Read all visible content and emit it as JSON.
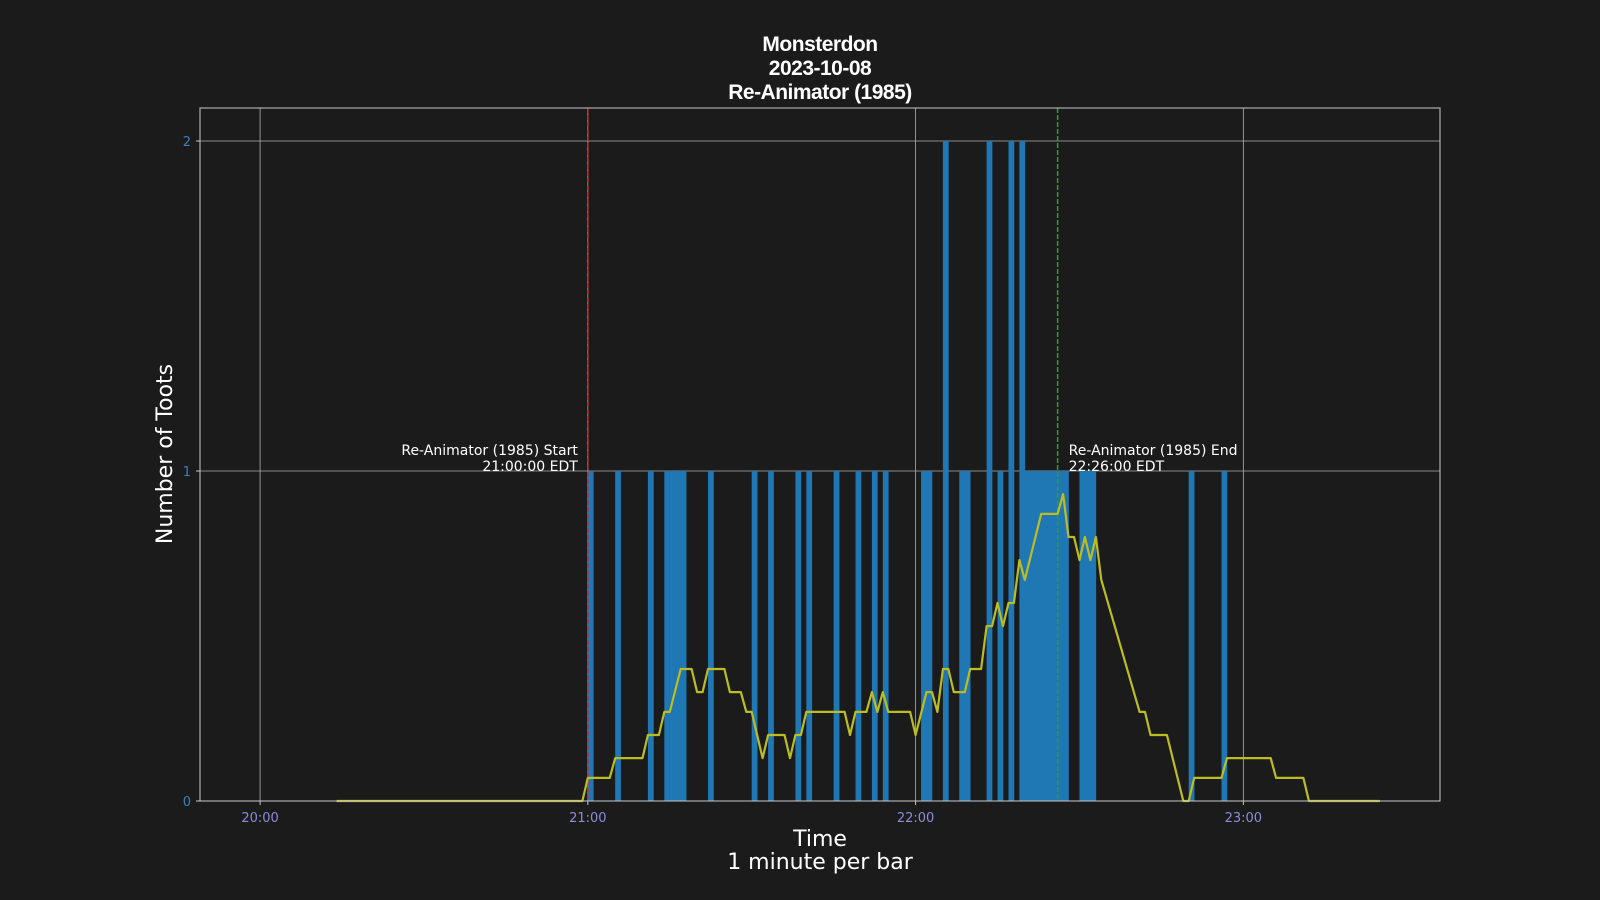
{
  "chart_data": {
    "type": "bar",
    "title_lines": [
      "Monsterdon",
      "2023-10-08",
      "Re-Animator (1985)"
    ],
    "xlabel": "Time",
    "xlabel_sub": "1 minute per bar",
    "ylabel": "Number of Toots",
    "x_unit": "time of day (EDT), hh:mm",
    "xlim": [
      "19:49",
      "23:36"
    ],
    "ylim": [
      0,
      2.1
    ],
    "xticks": [
      "20:00",
      "21:00",
      "22:00",
      "23:00"
    ],
    "yticks": [
      0,
      1,
      2
    ],
    "grid": true,
    "bars": {
      "bar_width_minutes": 1,
      "color": "#1f77b4",
      "toots": [
        {
          "t": "21:00",
          "v": 1
        },
        {
          "t": "21:05",
          "v": 1
        },
        {
          "t": "21:11",
          "v": 1
        },
        {
          "t": "21:14",
          "v": 1
        },
        {
          "t": "21:15",
          "v": 1
        },
        {
          "t": "21:16",
          "v": 1
        },
        {
          "t": "21:17",
          "v": 1
        },
        {
          "t": "21:22",
          "v": 1
        },
        {
          "t": "21:30",
          "v": 1
        },
        {
          "t": "21:33",
          "v": 1
        },
        {
          "t": "21:38",
          "v": 1
        },
        {
          "t": "21:40",
          "v": 1
        },
        {
          "t": "21:45",
          "v": 1
        },
        {
          "t": "21:49",
          "v": 1
        },
        {
          "t": "21:52",
          "v": 1
        },
        {
          "t": "21:54",
          "v": 1
        },
        {
          "t": "22:01",
          "v": 1
        },
        {
          "t": "22:02",
          "v": 1
        },
        {
          "t": "22:05",
          "v": 2
        },
        {
          "t": "22:08",
          "v": 1
        },
        {
          "t": "22:09",
          "v": 1
        },
        {
          "t": "22:13",
          "v": 2
        },
        {
          "t": "22:15",
          "v": 1
        },
        {
          "t": "22:17",
          "v": 2
        },
        {
          "t": "22:19",
          "v": 2
        },
        {
          "t": "22:20",
          "v": 1
        },
        {
          "t": "22:21",
          "v": 1
        },
        {
          "t": "22:22",
          "v": 1
        },
        {
          "t": "22:23",
          "v": 1
        },
        {
          "t": "22:24",
          "v": 1
        },
        {
          "t": "22:25",
          "v": 1
        },
        {
          "t": "22:26",
          "v": 1
        },
        {
          "t": "22:27",
          "v": 1
        },
        {
          "t": "22:30",
          "v": 1
        },
        {
          "t": "22:31",
          "v": 1
        },
        {
          "t": "22:32",
          "v": 1
        },
        {
          "t": "22:50",
          "v": 1
        },
        {
          "t": "22:56",
          "v": 1
        }
      ]
    },
    "moving_average": {
      "color": "#bcbd22",
      "points": [
        [
          "20:14",
          0
        ],
        [
          "20:59",
          0
        ],
        [
          "21:00",
          0.07
        ],
        [
          "21:04",
          0.07
        ],
        [
          "21:05",
          0.13
        ],
        [
          "21:10",
          0.13
        ],
        [
          "21:11",
          0.2
        ],
        [
          "21:13",
          0.2
        ],
        [
          "21:14",
          0.27
        ],
        [
          "21:15",
          0.27
        ],
        [
          "21:17",
          0.4
        ],
        [
          "21:19",
          0.4
        ],
        [
          "21:20",
          0.33
        ],
        [
          "21:21",
          0.33
        ],
        [
          "21:22",
          0.4
        ],
        [
          "21:25",
          0.4
        ],
        [
          "21:26",
          0.33
        ],
        [
          "21:28",
          0.33
        ],
        [
          "21:29",
          0.27
        ],
        [
          "21:30",
          0.27
        ],
        [
          "21:32",
          0.13
        ],
        [
          "21:33",
          0.2
        ],
        [
          "21:36",
          0.2
        ],
        [
          "21:37",
          0.13
        ],
        [
          "21:38",
          0.2
        ],
        [
          "21:39",
          0.2
        ],
        [
          "21:40",
          0.27
        ],
        [
          "21:47",
          0.27
        ],
        [
          "21:48",
          0.2
        ],
        [
          "21:49",
          0.27
        ],
        [
          "21:51",
          0.27
        ],
        [
          "21:52",
          0.33
        ],
        [
          "21:53",
          0.27
        ],
        [
          "21:54",
          0.33
        ],
        [
          "21:55",
          0.27
        ],
        [
          "21:59",
          0.27
        ],
        [
          "22:00",
          0.2
        ],
        [
          "22:02",
          0.33
        ],
        [
          "22:03",
          0.33
        ],
        [
          "22:04",
          0.27
        ],
        [
          "22:05",
          0.4
        ],
        [
          "22:06",
          0.4
        ],
        [
          "22:07",
          0.33
        ],
        [
          "22:09",
          0.33
        ],
        [
          "22:10",
          0.4
        ],
        [
          "22:12",
          0.4
        ],
        [
          "22:13",
          0.53
        ],
        [
          "22:14",
          0.53
        ],
        [
          "22:15",
          0.6
        ],
        [
          "22:16",
          0.53
        ],
        [
          "22:17",
          0.6
        ],
        [
          "22:18",
          0.6
        ],
        [
          "22:19",
          0.73
        ],
        [
          "22:20",
          0.67
        ],
        [
          "22:23",
          0.87
        ],
        [
          "22:26",
          0.87
        ],
        [
          "22:27",
          0.93
        ],
        [
          "22:28",
          0.8
        ],
        [
          "22:29",
          0.8
        ],
        [
          "22:30",
          0.73
        ],
        [
          "22:31",
          0.8
        ],
        [
          "22:32",
          0.73
        ],
        [
          "22:33",
          0.8
        ],
        [
          "22:34",
          0.67
        ],
        [
          "22:41",
          0.27
        ],
        [
          "22:42",
          0.27
        ],
        [
          "22:43",
          0.2
        ],
        [
          "22:46",
          0.2
        ],
        [
          "22:49",
          0
        ],
        [
          "22:50",
          0
        ],
        [
          "22:51",
          0.07
        ],
        [
          "22:56",
          0.07
        ],
        [
          "22:57",
          0.13
        ],
        [
          "23:05",
          0.13
        ],
        [
          "23:06",
          0.07
        ],
        [
          "23:11",
          0.07
        ],
        [
          "23:12",
          0
        ],
        [
          "23:25",
          0
        ]
      ]
    },
    "vlines": [
      {
        "t": "21:00",
        "color": "#d62728",
        "style": "dashed"
      },
      {
        "t": "22:26",
        "color": "#2ca02c",
        "style": "dashed"
      }
    ],
    "annotations": [
      {
        "t": "21:00",
        "align": "right",
        "lines": [
          "Re-Animator (1985) Start",
          "21:00:00 EDT"
        ]
      },
      {
        "t": "22:26",
        "align": "left",
        "lines": [
          "Re-Animator (1985) End",
          "22:26:00 EDT"
        ]
      }
    ]
  }
}
